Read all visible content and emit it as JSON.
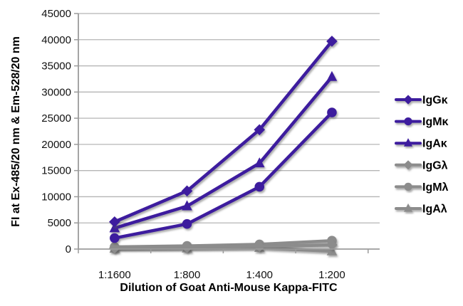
{
  "chart_data": {
    "type": "line",
    "title": "",
    "xlabel": "Dilution of Goat Anti-Mouse Kappa-FITC",
    "ylabel": "FI at Ex-485/20 nm & Em-528/20 nm",
    "categories": [
      "1:1600",
      "1:800",
      "1:400",
      "1:200"
    ],
    "ylim": [
      0,
      45000
    ],
    "ytick_step": 5000,
    "ytick_labels": [
      "0",
      "5000",
      "10000",
      "15000",
      "20000",
      "25000",
      "30000",
      "35000",
      "40000",
      "45000"
    ],
    "grid": "horizontal-only",
    "legend_position": "right-middle",
    "series": [
      {
        "name": "IgGκ",
        "marker": "diamond",
        "color": "#3E1D9E",
        "values": [
          5200,
          11100,
          22800,
          39700
        ]
      },
      {
        "name": "IgMκ",
        "marker": "circle",
        "color": "#3E1D9E",
        "values": [
          2100,
          4800,
          11900,
          26100
        ]
      },
      {
        "name": "IgAκ",
        "marker": "triangle",
        "color": "#3E1D9E",
        "values": [
          4000,
          8200,
          16400,
          32900
        ]
      },
      {
        "name": "IgGλ",
        "marker": "diamond",
        "color": "#8C8C8C",
        "values": [
          200,
          300,
          500,
          800
        ]
      },
      {
        "name": "IgMλ",
        "marker": "circle",
        "color": "#8C8C8C",
        "values": [
          400,
          600,
          900,
          1600
        ]
      },
      {
        "name": "IgAλ",
        "marker": "triangle",
        "color": "#8C8C8C",
        "values": [
          100,
          150,
          250,
          -400
        ]
      }
    ]
  },
  "colors": {
    "purple_series": "#3E1D9E",
    "gray_series": "#8C8C8C",
    "gridline": "#B5B5B5",
    "axis_line": "#9B9B9B",
    "text": "#000000",
    "background": "#FFFFFF"
  }
}
